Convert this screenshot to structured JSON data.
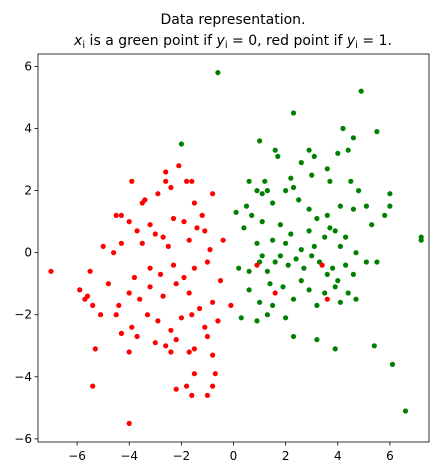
{
  "chart_data": {
    "type": "scatter",
    "title_line1": "Data representation.",
    "title_line2_parts": {
      "pre_a": "x",
      "sub_a": "i",
      "mid": " is a green point if ",
      "pre_b": "y",
      "sub_b": "i",
      "mid2": " = 0, red point if ",
      "pre_c": "y",
      "sub_c": "i",
      "post": " = 1."
    },
    "xlabel": "",
    "ylabel": "",
    "xlim": [
      -7.5,
      7.5
    ],
    "ylim": [
      -6.1,
      6.4
    ],
    "xticks": [
      -6,
      -4,
      -2,
      0,
      2,
      4,
      6
    ],
    "yticks": [
      -6,
      -4,
      -2,
      0,
      2,
      4,
      6
    ],
    "xtick_labels": [
      "−6",
      "−4",
      "−2",
      "0",
      "2",
      "4",
      "6"
    ],
    "ytick_labels": [
      "−6",
      "−4",
      "−2",
      "0",
      "2",
      "4",
      "6"
    ],
    "grid": false,
    "series": [
      {
        "label": "y = 0",
        "color": "#008000",
        "points": [
          [
            -0.6,
            5.8
          ],
          [
            -2.0,
            3.5
          ],
          [
            4.9,
            5.2
          ],
          [
            2.3,
            4.5
          ],
          [
            4.2,
            4.0
          ],
          [
            4.6,
            3.7
          ],
          [
            5.5,
            3.9
          ],
          [
            1.0,
            3.6
          ],
          [
            1.6,
            3.3
          ],
          [
            1.7,
            3.1
          ],
          [
            2.9,
            3.3
          ],
          [
            3.1,
            3.1
          ],
          [
            4.0,
            3.2
          ],
          [
            4.4,
            3.3
          ],
          [
            0.9,
            2.0
          ],
          [
            1.2,
            2.3
          ],
          [
            1.3,
            2.0
          ],
          [
            1.1,
            1.9
          ],
          [
            2.2,
            2.4
          ],
          [
            2.3,
            2.1
          ],
          [
            2.6,
            2.9
          ],
          [
            3.0,
            2.5
          ],
          [
            3.6,
            2.7
          ],
          [
            3.7,
            2.3
          ],
          [
            4.5,
            2.3
          ],
          [
            4.8,
            2.0
          ],
          [
            5.1,
            1.5
          ],
          [
            6.0,
            1.9
          ],
          [
            0.1,
            1.3
          ],
          [
            0.5,
            1.5
          ],
          [
            0.7,
            1.2
          ],
          [
            0.6,
            2.3
          ],
          [
            1.1,
            1.0
          ],
          [
            1.5,
            1.6
          ],
          [
            2.0,
            2.0
          ],
          [
            2.5,
            1.7
          ],
          [
            2.9,
            1.4
          ],
          [
            3.2,
            1.1
          ],
          [
            3.6,
            1.2
          ],
          [
            4.1,
            1.5
          ],
          [
            4.6,
            1.4
          ],
          [
            5.3,
            0.9
          ],
          [
            5.8,
            1.2
          ],
          [
            6.0,
            1.5
          ],
          [
            7.2,
            0.5
          ],
          [
            7.2,
            0.4
          ],
          [
            0.4,
            0.8
          ],
          [
            0.9,
            0.3
          ],
          [
            1.1,
            -0.1
          ],
          [
            1.5,
            0.4
          ],
          [
            1.8,
            0.9
          ],
          [
            2.0,
            0.3
          ],
          [
            2.2,
            0.6
          ],
          [
            2.6,
            0.1
          ],
          [
            2.9,
            0.7
          ],
          [
            3.1,
            0.2
          ],
          [
            3.5,
            0.5
          ],
          [
            3.7,
            0.8
          ],
          [
            3.9,
            0.7
          ],
          [
            4.1,
            0.2
          ],
          [
            4.3,
            0.5
          ],
          [
            4.7,
            0.0
          ],
          [
            5.1,
            -0.3
          ],
          [
            5.5,
            -0.3
          ],
          [
            0.6,
            -0.6
          ],
          [
            1.0,
            -0.3
          ],
          [
            1.3,
            -0.6
          ],
          [
            1.6,
            -0.3
          ],
          [
            1.8,
            -0.1
          ],
          [
            2.1,
            -0.4
          ],
          [
            2.4,
            -0.2
          ],
          [
            2.7,
            -0.5
          ],
          [
            3.0,
            -0.1
          ],
          [
            3.3,
            -0.3
          ],
          [
            3.6,
            -0.7
          ],
          [
            3.8,
            -0.5
          ],
          [
            4.0,
            -0.9
          ],
          [
            4.3,
            -0.4
          ],
          [
            4.6,
            -0.7
          ],
          [
            0.2,
            -0.5
          ],
          [
            0.6,
            -1.2
          ],
          [
            1.0,
            -1.6
          ],
          [
            1.4,
            -1.0
          ],
          [
            1.5,
            -1.7
          ],
          [
            1.9,
            -1.1
          ],
          [
            2.3,
            -1.5
          ],
          [
            2.6,
            -0.9
          ],
          [
            2.9,
            -1.2
          ],
          [
            3.2,
            -1.7
          ],
          [
            3.5,
            -1.3
          ],
          [
            3.9,
            -1.1
          ],
          [
            4.1,
            -1.6
          ],
          [
            4.4,
            -1.3
          ],
          [
            4.7,
            -1.5
          ],
          [
            0.3,
            -2.1
          ],
          [
            0.9,
            -2.2
          ],
          [
            1.3,
            -2.0
          ],
          [
            2.0,
            -2.1
          ],
          [
            2.3,
            -2.7
          ],
          [
            3.2,
            -2.8
          ],
          [
            3.9,
            -3.1
          ],
          [
            5.4,
            -3.0
          ],
          [
            6.1,
            -3.6
          ],
          [
            6.6,
            -5.1
          ]
        ]
      },
      {
        "label": "y = 1",
        "color": "#ff0000",
        "points": [
          [
            -2.1,
            2.8
          ],
          [
            -2.6,
            2.6
          ],
          [
            -2.6,
            2.3
          ],
          [
            -2.4,
            2.1
          ],
          [
            -1.8,
            2.3
          ],
          [
            -1.6,
            2.3
          ],
          [
            -3.9,
            2.3
          ],
          [
            -2.9,
            1.9
          ],
          [
            -3.4,
            1.7
          ],
          [
            -1.5,
            1.6
          ],
          [
            -0.8,
            1.9
          ],
          [
            -4.5,
            1.2
          ],
          [
            -4.3,
            1.2
          ],
          [
            -3.5,
            1.6
          ],
          [
            -2.3,
            1.1
          ],
          [
            -1.9,
            1.0
          ],
          [
            -1.2,
            1.2
          ],
          [
            -1.4,
            0.8
          ],
          [
            -3.2,
            0.9
          ],
          [
            -3.0,
            0.6
          ],
          [
            -2.7,
            0.5
          ],
          [
            -3.7,
            0.7
          ],
          [
            -4.0,
            1.0
          ],
          [
            -3.5,
            0.3
          ],
          [
            -2.5,
            0.2
          ],
          [
            -1.7,
            0.4
          ],
          [
            -1.1,
            0.7
          ],
          [
            -0.9,
            0.1
          ],
          [
            -0.4,
            0.4
          ],
          [
            -4.3,
            0.3
          ],
          [
            -4.6,
            0.0
          ],
          [
            -5.0,
            0.2
          ],
          [
            -5.5,
            -0.6
          ],
          [
            -3.8,
            -0.8
          ],
          [
            -3.2,
            -0.5
          ],
          [
            -2.8,
            -0.7
          ],
          [
            -2.3,
            -0.4
          ],
          [
            -1.9,
            -0.8
          ],
          [
            -1.5,
            -0.5
          ],
          [
            -1.0,
            -0.3
          ],
          [
            -0.5,
            -0.9
          ],
          [
            -7.0,
            -0.6
          ],
          [
            -5.9,
            -1.2
          ],
          [
            -5.6,
            -1.4
          ],
          [
            -5.4,
            -1.7
          ],
          [
            -4.8,
            -1.0
          ],
          [
            -4.4,
            -1.7
          ],
          [
            -4.0,
            -1.3
          ],
          [
            -3.6,
            -1.5
          ],
          [
            -3.2,
            -1.1
          ],
          [
            -2.7,
            -1.4
          ],
          [
            -2.2,
            -1.0
          ],
          [
            -1.7,
            -1.3
          ],
          [
            -1.3,
            -1.8
          ],
          [
            -0.8,
            -1.6
          ],
          [
            -0.1,
            -1.7
          ],
          [
            -5.7,
            -1.5
          ],
          [
            -4.5,
            -2.0
          ],
          [
            -3.9,
            -2.4
          ],
          [
            -3.3,
            -2.0
          ],
          [
            -2.9,
            -2.2
          ],
          [
            -2.4,
            -2.5
          ],
          [
            -2.0,
            -2.1
          ],
          [
            -1.6,
            -2.0
          ],
          [
            -1.1,
            -2.4
          ],
          [
            -0.6,
            -2.2
          ],
          [
            -5.1,
            -2.0
          ],
          [
            -4.3,
            -2.6
          ],
          [
            -3.7,
            -2.7
          ],
          [
            -3.0,
            -2.9
          ],
          [
            -2.6,
            -3.0
          ],
          [
            -2.2,
            -2.8
          ],
          [
            -1.5,
            -3.1
          ],
          [
            -1.0,
            -2.7
          ],
          [
            -0.8,
            -3.3
          ],
          [
            -4.0,
            -3.2
          ],
          [
            -2.4,
            -3.2
          ],
          [
            -1.7,
            -3.2
          ],
          [
            -0.7,
            -3.9
          ],
          [
            -1.5,
            -3.9
          ],
          [
            -0.8,
            -4.3
          ],
          [
            -1.0,
            -4.6
          ],
          [
            -1.6,
            -4.6
          ],
          [
            -1.8,
            -4.3
          ],
          [
            -2.2,
            -4.4
          ],
          [
            -5.4,
            -4.3
          ],
          [
            -5.3,
            -3.1
          ],
          [
            -4.0,
            -5.5
          ],
          [
            0.9,
            -0.4
          ],
          [
            1.6,
            -1.3
          ],
          [
            3.4,
            -0.4
          ],
          [
            3.6,
            -1.5
          ]
        ]
      }
    ]
  }
}
